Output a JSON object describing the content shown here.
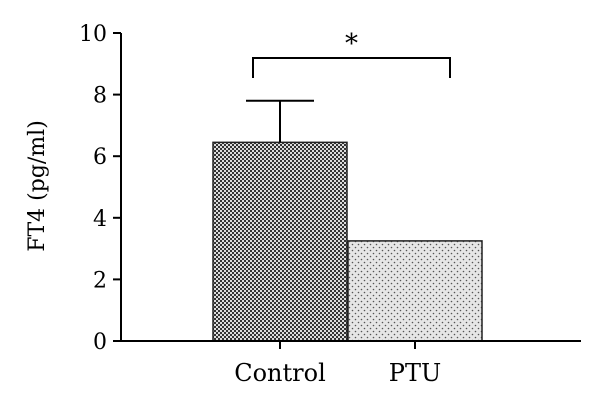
{
  "chart_data": {
    "type": "bar",
    "categories": [
      "Control",
      "PTU"
    ],
    "values": [
      6.45,
      3.25
    ],
    "errors_upper": [
      7.8,
      3.25
    ],
    "ylabel": "FT4 (pg/ml)",
    "ylim": [
      0,
      10
    ],
    "yticks": [
      "0",
      "2",
      "4",
      "6",
      "8",
      "10"
    ],
    "significance": {
      "between": [
        "Control",
        "PTU"
      ],
      "label": "*"
    },
    "grid": false,
    "bar_patterns": [
      "dense-checker",
      "sparse-dots"
    ]
  }
}
